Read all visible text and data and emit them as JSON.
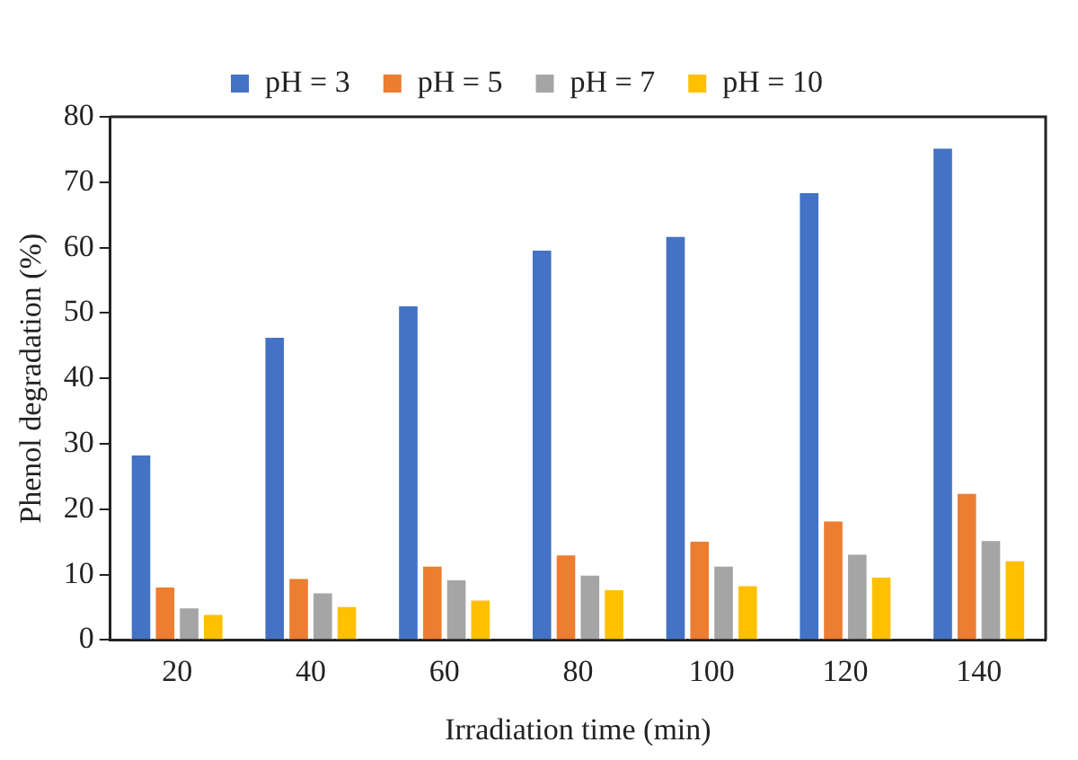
{
  "chart_data": {
    "type": "bar",
    "xlabel": "Irradiation time (min)",
    "ylabel": "Phenol degradation (%)",
    "categories": [
      "20",
      "40",
      "60",
      "80",
      "100",
      "120",
      "140"
    ],
    "series": [
      {
        "name": "pH = 3",
        "color": "#4472c4",
        "values": [
          28.5,
          46.5,
          51.3,
          59.8,
          61.9,
          68.6,
          75.4
        ]
      },
      {
        "name": "pH = 5",
        "color": "#ed7d31",
        "values": [
          8.3,
          9.6,
          11.5,
          13.2,
          15.3,
          18.4,
          22.6
        ]
      },
      {
        "name": "pH = 7",
        "color": "#a5a5a5",
        "values": [
          5.1,
          7.4,
          9.4,
          10.1,
          11.5,
          13.3,
          15.4
        ]
      },
      {
        "name": "pH = 10",
        "color": "#ffc000",
        "values": [
          4.1,
          5.3,
          6.3,
          7.9,
          8.5,
          9.8,
          12.3
        ]
      }
    ],
    "ylim": [
      0,
      80
    ],
    "yticks": [
      0,
      10,
      20,
      30,
      40,
      50,
      60,
      70,
      80
    ],
    "grid": false,
    "legend": "top"
  }
}
